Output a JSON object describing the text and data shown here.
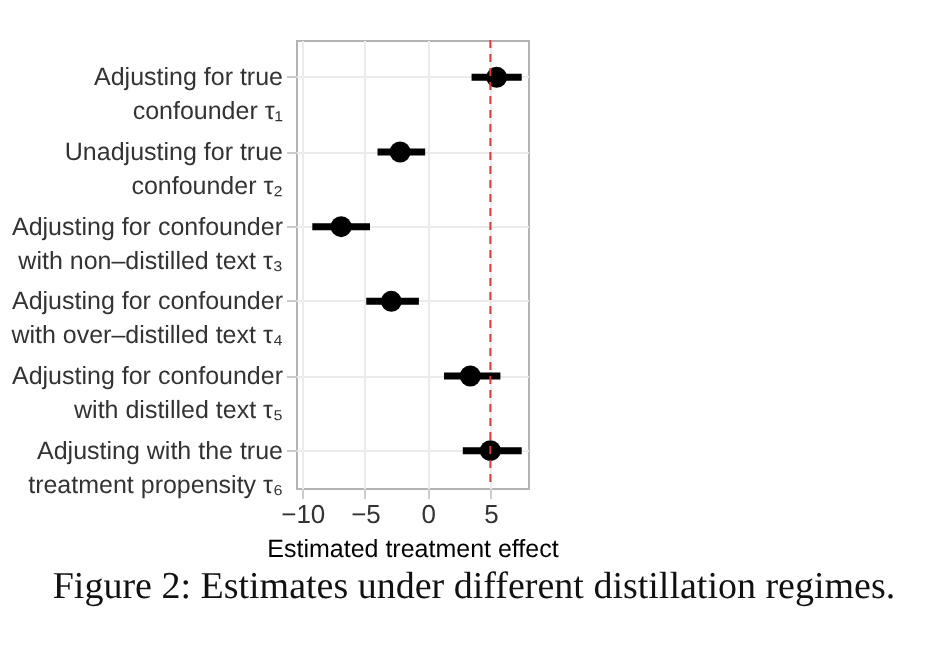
{
  "chart_data": {
    "type": "scatter",
    "orientation": "horizontal",
    "categories": [
      "Adjusting for true\nconfounder τ₁",
      "Unadjusting for true\nconfounder τ₂",
      "Adjusting for confounder\nwith non–distilled text τ₃",
      "Adjusting for confounder\nwith over–distilled text τ₄",
      "Adjusting for confounder\nwith distilled text τ₅",
      "Adjusting with the true\ntreatment propensity τ₆"
    ],
    "values": [
      5.5,
      -2.2,
      -6.9,
      -2.9,
      3.4,
      5.0
    ],
    "errors": [
      [
        3.5,
        7.5
      ],
      [
        -4.0,
        -0.2
      ],
      [
        -9.2,
        -4.6
      ],
      [
        -4.9,
        -0.7
      ],
      [
        1.3,
        5.8
      ],
      [
        2.8,
        7.5
      ]
    ],
    "color": "#000000",
    "marker": "circle",
    "xlabel": "Estimated treatment effect",
    "xlim": [
      -10.5,
      8
    ],
    "xticks": [
      -10,
      -5,
      0,
      5
    ],
    "grid": true,
    "ref_lines": [
      {
        "axis": "x",
        "value": 5,
        "color": "#e0393e",
        "line_style": "dashed"
      }
    ],
    "annotations": [
      "Figure 2: Estimates under different distillation regimes."
    ]
  }
}
